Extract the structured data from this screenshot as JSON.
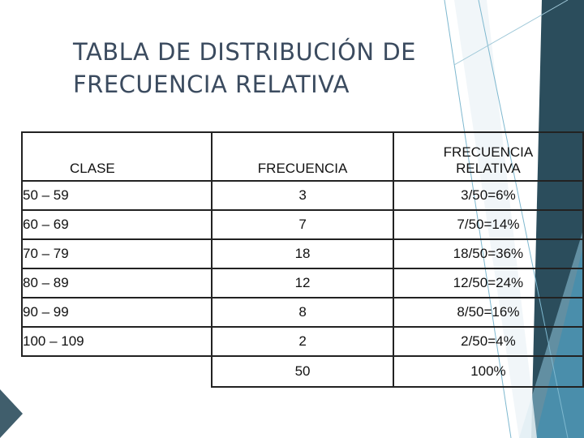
{
  "title": {
    "line1": "TABLA DE DISTRIBUCIÓN DE",
    "line2": "FRECUENCIA RELATIVA"
  },
  "table": {
    "headers": {
      "clase": "CLASE",
      "frecuencia": "FRECUENCIA",
      "relativa_line1": "FRECUENCIA",
      "relativa_line2": "RELATIVA"
    },
    "rows": [
      {
        "clase": "50 – 59",
        "frecuencia": "3",
        "relativa": "3/50=6%"
      },
      {
        "clase": "60 – 69",
        "frecuencia": "7",
        "relativa": "7/50=14%"
      },
      {
        "clase": "70 – 79",
        "frecuencia": "18",
        "relativa": "18/50=36%"
      },
      {
        "clase": "80 – 89",
        "frecuencia": "12",
        "relativa": "12/50=24%"
      },
      {
        "clase": "90 – 99",
        "frecuencia": "8",
        "relativa": "8/50=16%"
      },
      {
        "clase": "100 – 109",
        "frecuencia": "2",
        "relativa": "2/50=4%"
      }
    ],
    "total": {
      "frecuencia": "50",
      "relativa": "100%"
    }
  },
  "colors": {
    "title": "#3b4b5f",
    "accent_dark": "#2b4d5c",
    "accent_teal": "#3a8db0",
    "accent_light": "#6fb8d6"
  }
}
